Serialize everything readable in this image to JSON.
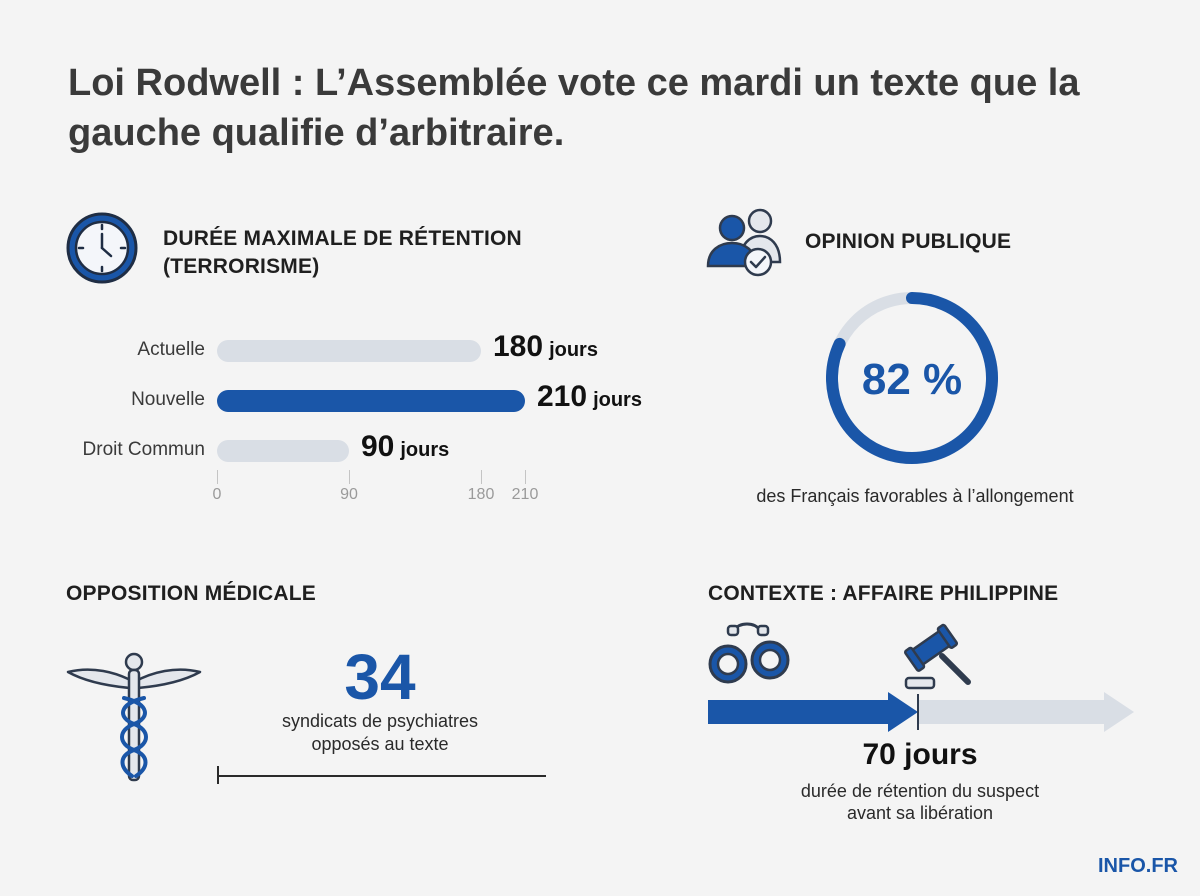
{
  "title": "Loi Rodwell : L’Assemblée vote ce mardi un texte que la gauche qualifie d’arbitraire.",
  "retention": {
    "title": "DURÉE MAXIMALE DE RÉTENTION (TERRORISME)",
    "unit": "jours"
  },
  "opinion": {
    "title": "OPINION PUBLIQUE",
    "value_label": "82 %",
    "caption": "des Français favorables à l’allongement"
  },
  "medical": {
    "title": "OPPOSITION MÉDICALE",
    "number": "34",
    "caption_line1": "syndicats de psychiatres",
    "caption_line2": "opposés au texte"
  },
  "context": {
    "title": "CONTEXTE : AFFAIRE PHILIPPINE",
    "days": "70 jours",
    "caption_line1": "durée de rétention du suspect",
    "caption_line2": "avant sa libération"
  },
  "brand": "INFO.FR",
  "colors": {
    "accent": "#1a56a8",
    "track": "#d9dee5",
    "text": "#1f1f1f"
  },
  "icons": [
    "clock-icon",
    "people-check-icon",
    "caduceus-icon",
    "handcuffs-icon",
    "gavel-icon"
  ],
  "chart_data": [
    {
      "type": "bar",
      "orientation": "horizontal",
      "title": "DURÉE MAXIMALE DE RÉTENTION (TERRORISME)",
      "categories": [
        "Actuelle",
        "Nouvelle",
        "Droit Commun"
      ],
      "values": [
        180,
        210,
        90
      ],
      "value_labels": [
        "180",
        "210",
        "90"
      ],
      "highlight": "Nouvelle",
      "x_ticks": [
        0,
        90,
        180,
        210
      ],
      "xlim": [
        0,
        210
      ],
      "grid": false
    },
    {
      "type": "pie",
      "variant": "donut",
      "title": "OPINION PUBLIQUE",
      "values": [
        82,
        18
      ],
      "value_label": "82 %"
    }
  ]
}
